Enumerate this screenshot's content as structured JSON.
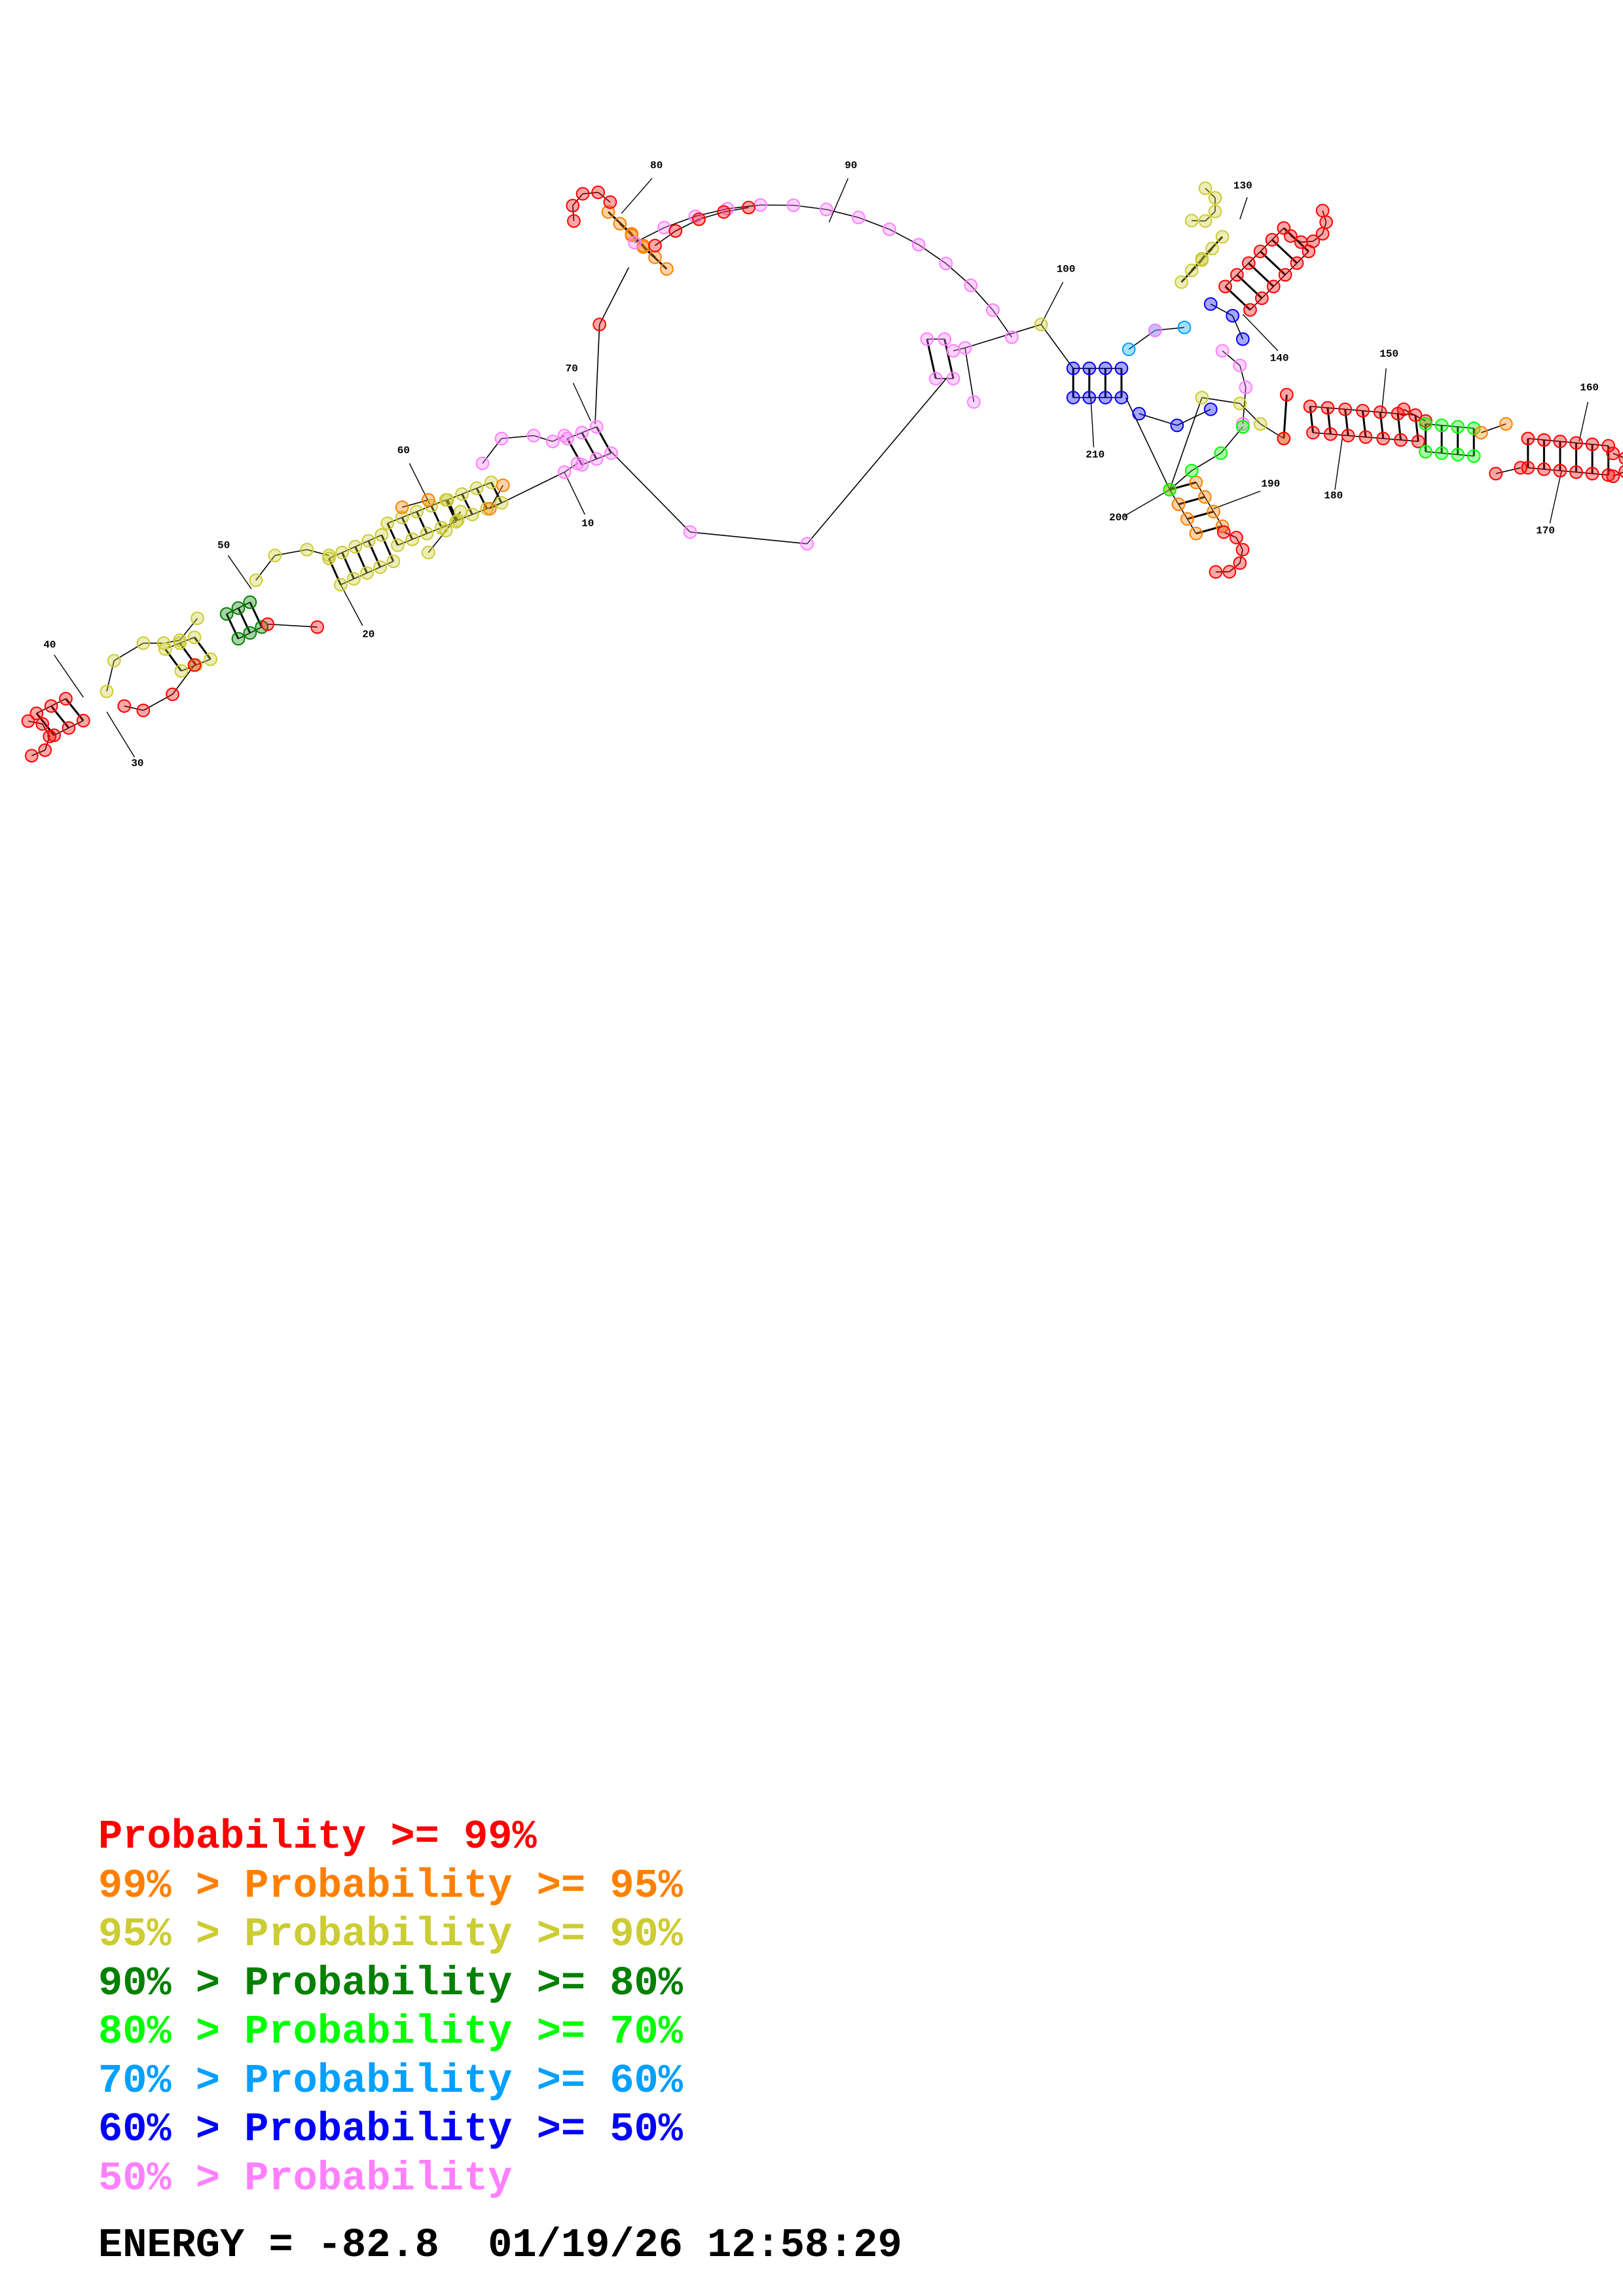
{
  "structure": {
    "position_labels": [
      "10",
      "20",
      "30",
      "40",
      "50",
      "60",
      "70",
      "80",
      "90",
      "100",
      "130",
      "140",
      "150",
      "160",
      "170",
      "180",
      "190",
      "200",
      "210"
    ]
  },
  "colors": {
    "p99": "#ff0000",
    "p95": "#ff8000",
    "p90": "#cccc33",
    "p80": "#008000",
    "p70": "#00ff00",
    "p60": "#00a0ff",
    "p50": "#0000ff",
    "plow": "#ff80ff"
  },
  "legend": [
    {
      "prefix": "",
      "label": "Probability >= 99%",
      "color": "#ff0000"
    },
    {
      "prefix": "99% > ",
      "label": "Probability >= 95%",
      "color": "#ff8000"
    },
    {
      "prefix": "95% > ",
      "label": "Probability >= 90%",
      "color": "#cccc33"
    },
    {
      "prefix": "90% > ",
      "label": "Probability >= 80%",
      "color": "#008000"
    },
    {
      "prefix": "80% > ",
      "label": "Probability >= 70%",
      "color": "#00ff00"
    },
    {
      "prefix": "70% > ",
      "label": "Probability >= 60%",
      "color": "#00a0ff"
    },
    {
      "prefix": "60% > ",
      "label": "Probability >= 50%",
      "color": "#0000ff"
    },
    {
      "prefix": "50% > ",
      "label": "Probability",
      "color": "#ff80ff"
    }
  ],
  "energy": {
    "text": "ENERGY = -82.8  01/19/26 12:58:29"
  }
}
